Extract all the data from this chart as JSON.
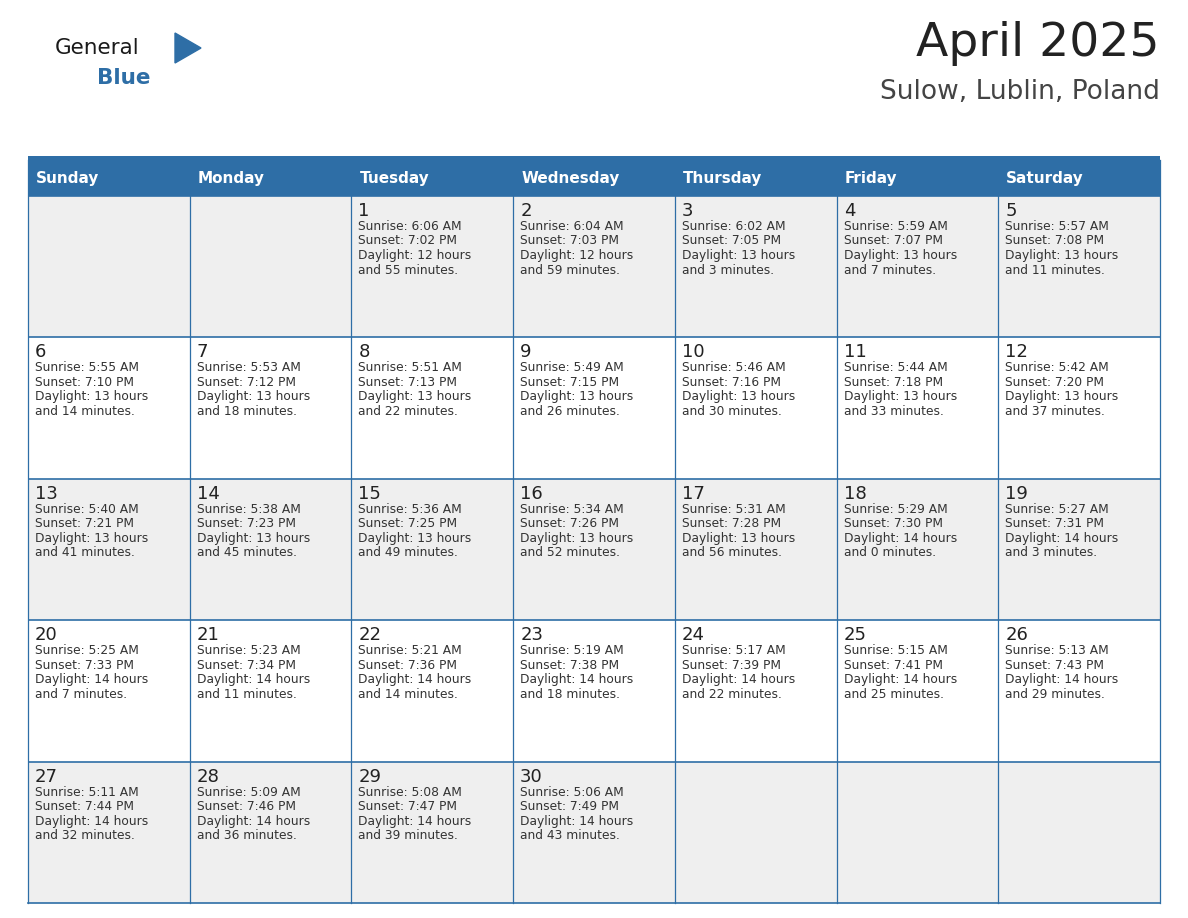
{
  "title": "April 2025",
  "subtitle": "Sulow, Lublin, Poland",
  "header_bg_color": "#2E6EA6",
  "header_text_color": "#FFFFFF",
  "days_of_week": [
    "Sunday",
    "Monday",
    "Tuesday",
    "Wednesday",
    "Thursday",
    "Friday",
    "Saturday"
  ],
  "row_colors": [
    "#EFEFEF",
    "#FFFFFF"
  ],
  "border_color": "#2E6EA6",
  "title_color": "#222222",
  "subtitle_color": "#444444",
  "day_number_color": "#222222",
  "cell_text_color": "#333333",
  "logo_general_color": "#1a1a1a",
  "logo_blue_color": "#2E6EA6",
  "calendar_data": [
    [
      {
        "day": "",
        "info": ""
      },
      {
        "day": "",
        "info": ""
      },
      {
        "day": "1",
        "info": "Sunrise: 6:06 AM\nSunset: 7:02 PM\nDaylight: 12 hours\nand 55 minutes."
      },
      {
        "day": "2",
        "info": "Sunrise: 6:04 AM\nSunset: 7:03 PM\nDaylight: 12 hours\nand 59 minutes."
      },
      {
        "day": "3",
        "info": "Sunrise: 6:02 AM\nSunset: 7:05 PM\nDaylight: 13 hours\nand 3 minutes."
      },
      {
        "day": "4",
        "info": "Sunrise: 5:59 AM\nSunset: 7:07 PM\nDaylight: 13 hours\nand 7 minutes."
      },
      {
        "day": "5",
        "info": "Sunrise: 5:57 AM\nSunset: 7:08 PM\nDaylight: 13 hours\nand 11 minutes."
      }
    ],
    [
      {
        "day": "6",
        "info": "Sunrise: 5:55 AM\nSunset: 7:10 PM\nDaylight: 13 hours\nand 14 minutes."
      },
      {
        "day": "7",
        "info": "Sunrise: 5:53 AM\nSunset: 7:12 PM\nDaylight: 13 hours\nand 18 minutes."
      },
      {
        "day": "8",
        "info": "Sunrise: 5:51 AM\nSunset: 7:13 PM\nDaylight: 13 hours\nand 22 minutes."
      },
      {
        "day": "9",
        "info": "Sunrise: 5:49 AM\nSunset: 7:15 PM\nDaylight: 13 hours\nand 26 minutes."
      },
      {
        "day": "10",
        "info": "Sunrise: 5:46 AM\nSunset: 7:16 PM\nDaylight: 13 hours\nand 30 minutes."
      },
      {
        "day": "11",
        "info": "Sunrise: 5:44 AM\nSunset: 7:18 PM\nDaylight: 13 hours\nand 33 minutes."
      },
      {
        "day": "12",
        "info": "Sunrise: 5:42 AM\nSunset: 7:20 PM\nDaylight: 13 hours\nand 37 minutes."
      }
    ],
    [
      {
        "day": "13",
        "info": "Sunrise: 5:40 AM\nSunset: 7:21 PM\nDaylight: 13 hours\nand 41 minutes."
      },
      {
        "day": "14",
        "info": "Sunrise: 5:38 AM\nSunset: 7:23 PM\nDaylight: 13 hours\nand 45 minutes."
      },
      {
        "day": "15",
        "info": "Sunrise: 5:36 AM\nSunset: 7:25 PM\nDaylight: 13 hours\nand 49 minutes."
      },
      {
        "day": "16",
        "info": "Sunrise: 5:34 AM\nSunset: 7:26 PM\nDaylight: 13 hours\nand 52 minutes."
      },
      {
        "day": "17",
        "info": "Sunrise: 5:31 AM\nSunset: 7:28 PM\nDaylight: 13 hours\nand 56 minutes."
      },
      {
        "day": "18",
        "info": "Sunrise: 5:29 AM\nSunset: 7:30 PM\nDaylight: 14 hours\nand 0 minutes."
      },
      {
        "day": "19",
        "info": "Sunrise: 5:27 AM\nSunset: 7:31 PM\nDaylight: 14 hours\nand 3 minutes."
      }
    ],
    [
      {
        "day": "20",
        "info": "Sunrise: 5:25 AM\nSunset: 7:33 PM\nDaylight: 14 hours\nand 7 minutes."
      },
      {
        "day": "21",
        "info": "Sunrise: 5:23 AM\nSunset: 7:34 PM\nDaylight: 14 hours\nand 11 minutes."
      },
      {
        "day": "22",
        "info": "Sunrise: 5:21 AM\nSunset: 7:36 PM\nDaylight: 14 hours\nand 14 minutes."
      },
      {
        "day": "23",
        "info": "Sunrise: 5:19 AM\nSunset: 7:38 PM\nDaylight: 14 hours\nand 18 minutes."
      },
      {
        "day": "24",
        "info": "Sunrise: 5:17 AM\nSunset: 7:39 PM\nDaylight: 14 hours\nand 22 minutes."
      },
      {
        "day": "25",
        "info": "Sunrise: 5:15 AM\nSunset: 7:41 PM\nDaylight: 14 hours\nand 25 minutes."
      },
      {
        "day": "26",
        "info": "Sunrise: 5:13 AM\nSunset: 7:43 PM\nDaylight: 14 hours\nand 29 minutes."
      }
    ],
    [
      {
        "day": "27",
        "info": "Sunrise: 5:11 AM\nSunset: 7:44 PM\nDaylight: 14 hours\nand 32 minutes."
      },
      {
        "day": "28",
        "info": "Sunrise: 5:09 AM\nSunset: 7:46 PM\nDaylight: 14 hours\nand 36 minutes."
      },
      {
        "day": "29",
        "info": "Sunrise: 5:08 AM\nSunset: 7:47 PM\nDaylight: 14 hours\nand 39 minutes."
      },
      {
        "day": "30",
        "info": "Sunrise: 5:06 AM\nSunset: 7:49 PM\nDaylight: 14 hours\nand 43 minutes."
      },
      {
        "day": "",
        "info": ""
      },
      {
        "day": "",
        "info": ""
      },
      {
        "day": "",
        "info": ""
      }
    ]
  ]
}
